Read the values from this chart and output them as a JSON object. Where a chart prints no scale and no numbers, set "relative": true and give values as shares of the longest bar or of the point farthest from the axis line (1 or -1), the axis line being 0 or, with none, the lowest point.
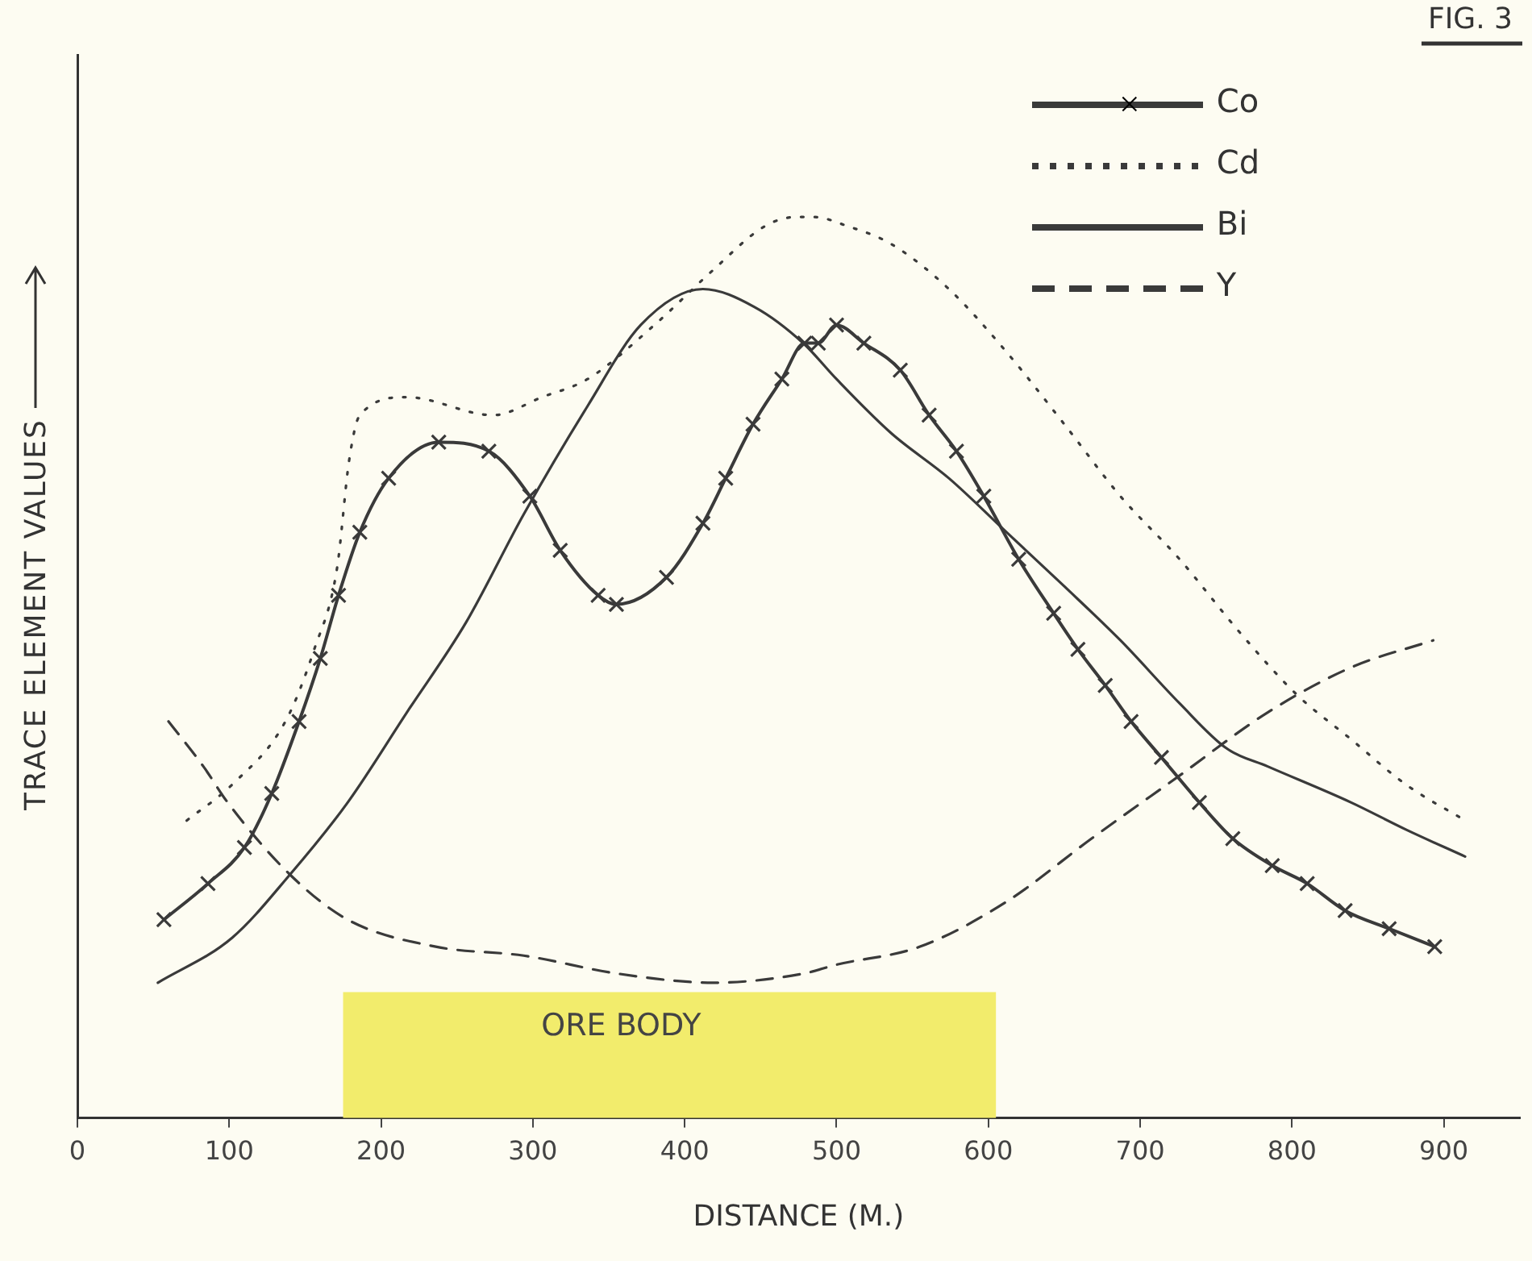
{
  "chart_data": {
    "type": "line",
    "title": "FIG. 3",
    "xlabel": "DISTANCE (M.)",
    "ylabel": "TRACE ELEMENT VALUES",
    "relative": true,
    "xlim": [
      0,
      950
    ],
    "xticks": [
      0,
      100,
      200,
      300,
      400,
      500,
      600,
      700,
      800,
      900
    ],
    "grid": false,
    "legend": "top right",
    "bands": [
      {
        "axis": "x",
        "from": 175,
        "to": 605,
        "label": "ORE BODY",
        "color": "#f2ec6c"
      }
    ],
    "series": [
      {
        "name": "Co",
        "color": "#3a3a3a",
        "marker": "cross",
        "line_style": "solid",
        "x": [
          57,
          86,
          110,
          128,
          146,
          160,
          172,
          186,
          205,
          238,
          271,
          298,
          318,
          343,
          355,
          388,
          412,
          427,
          445,
          464,
          479,
          488,
          500,
          518,
          542,
          561,
          579,
          597,
          620,
          643,
          659,
          677,
          694,
          714,
          739,
          761,
          787,
          810,
          835,
          864,
          894
        ],
        "values": [
          0.22,
          0.26,
          0.3,
          0.36,
          0.44,
          0.51,
          0.58,
          0.65,
          0.71,
          0.75,
          0.74,
          0.69,
          0.63,
          0.58,
          0.57,
          0.6,
          0.66,
          0.71,
          0.77,
          0.82,
          0.86,
          0.86,
          0.88,
          0.86,
          0.83,
          0.78,
          0.74,
          0.69,
          0.62,
          0.56,
          0.52,
          0.48,
          0.44,
          0.4,
          0.35,
          0.31,
          0.28,
          0.26,
          0.23,
          0.21,
          0.19
        ]
      },
      {
        "name": "Cd",
        "color": "#3a3a3a",
        "marker": "none",
        "line_style": "dotted",
        "x": [
          72,
          102,
          137,
          156,
          171,
          179,
          186,
          217,
          274,
          306,
          336,
          380,
          418,
          453,
          474,
          485,
          507,
          536,
          574,
          612,
          650,
          687,
          726,
          765,
          803,
          839,
          875,
          914
        ],
        "values": [
          0.33,
          0.37,
          0.44,
          0.52,
          0.61,
          0.73,
          0.78,
          0.8,
          0.78,
          0.8,
          0.82,
          0.88,
          0.94,
          0.99,
          1.0,
          1.0,
          0.99,
          0.97,
          0.92,
          0.85,
          0.77,
          0.69,
          0.62,
          0.54,
          0.47,
          0.42,
          0.37,
          0.33
        ]
      },
      {
        "name": "Bi",
        "color": "#3a3a3a",
        "marker": "none",
        "line_style": "solid",
        "x": [
          53,
          102,
          140,
          178,
          217,
          256,
          294,
          336,
          371,
          412,
          446,
          478,
          500,
          536,
          574,
          612,
          650,
          687,
          726,
          757,
          784,
          839,
          875,
          914
        ],
        "values": [
          0.15,
          0.2,
          0.27,
          0.35,
          0.45,
          0.55,
          0.67,
          0.79,
          0.88,
          0.92,
          0.9,
          0.86,
          0.82,
          0.76,
          0.71,
          0.65,
          0.59,
          0.53,
          0.46,
          0.41,
          0.39,
          0.35,
          0.32,
          0.29
        ]
      },
      {
        "name": "Y",
        "color": "#3a3a3a",
        "marker": "none",
        "line_style": "dashed",
        "x": [
          60,
          83,
          99,
          140,
          178,
          236,
          294,
          356,
          419,
          478,
          500,
          555,
          612,
          668,
          726,
          784,
          839,
          893
        ],
        "values": [
          0.44,
          0.39,
          0.35,
          0.27,
          0.22,
          0.19,
          0.18,
          0.16,
          0.15,
          0.16,
          0.17,
          0.19,
          0.24,
          0.31,
          0.38,
          0.45,
          0.5,
          0.53
        ]
      }
    ]
  }
}
